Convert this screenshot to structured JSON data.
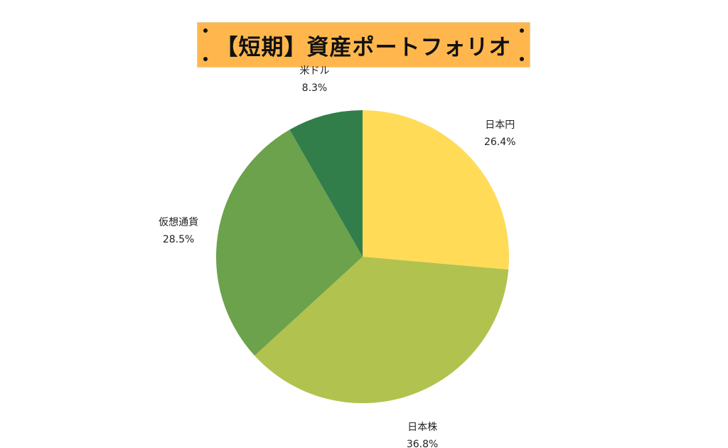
{
  "title": "【短期】資産ポートフォリオ",
  "colors": {
    "banner": "#ffb74d"
  },
  "chart_data": {
    "type": "pie",
    "title": "【短期】資産ポートフォリオ",
    "slices": [
      {
        "label": "日本円",
        "value": 26.4,
        "display": "26.4%",
        "color": "#ffdb58"
      },
      {
        "label": "日本株",
        "value": 36.8,
        "display": "36.8%",
        "color": "#b2c24e"
      },
      {
        "label": "仮想通貨",
        "value": 28.5,
        "display": "28.5%",
        "color": "#6ba24b"
      },
      {
        "label": "米ドル",
        "value": 8.3,
        "display": "8.3%",
        "color": "#317e4a"
      }
    ],
    "start": "12 o'clock",
    "direction": "clockwise",
    "legend": "none",
    "labels": "outside"
  }
}
